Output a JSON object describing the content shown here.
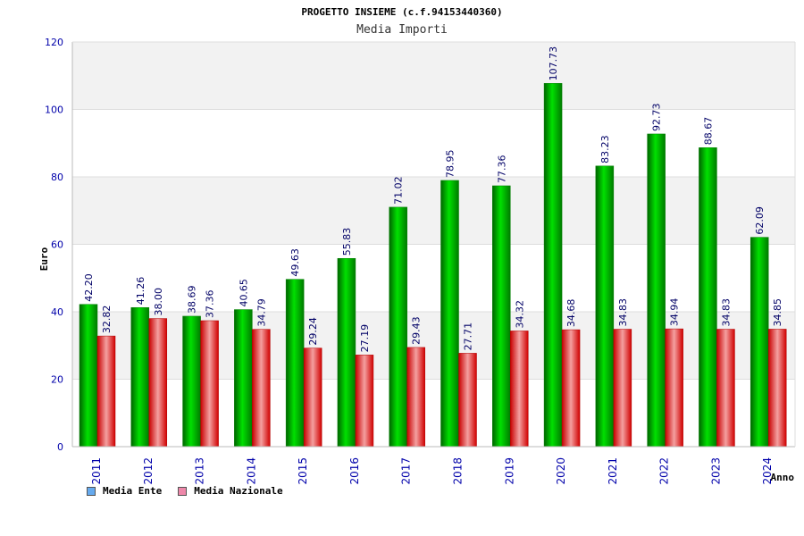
{
  "header": {
    "title": "PROGETTO INSIEME (c.f.94153440360)",
    "subtitle": "Media Importi"
  },
  "legend": {
    "ente_label": "Media Ente",
    "nazionale_label": "Media Nazionale",
    "ente_color": "#66aaee",
    "nazionale_color": "#ee88aa"
  },
  "chart_data": {
    "type": "bar",
    "title": "Media Importi",
    "xlabel": "Anno",
    "ylabel": "Euro",
    "ylim": [
      0,
      120
    ],
    "yticks": [
      0,
      20,
      40,
      60,
      80,
      100,
      120
    ],
    "categories": [
      "2011",
      "2012",
      "2013",
      "2014",
      "2015",
      "2016",
      "2017",
      "2018",
      "2019",
      "2020",
      "2021",
      "2022",
      "2023",
      "2024"
    ],
    "series": [
      {
        "name": "Media Ente",
        "color": "#00c000",
        "values": [
          42.2,
          41.26,
          38.69,
          40.65,
          49.63,
          55.83,
          71.02,
          78.95,
          77.36,
          107.73,
          83.23,
          92.73,
          88.67,
          62.09
        ],
        "labels": [
          "42.20",
          "41.26",
          "38.69",
          "40.65",
          "49.63",
          "55.83",
          "71.02",
          "78.95",
          "77.36",
          "107.73",
          "83.23",
          "92.73",
          "88.67",
          "62.09"
        ]
      },
      {
        "name": "Media Nazionale",
        "color": "#e00000",
        "values": [
          32.82,
          38.0,
          37.36,
          34.79,
          29.24,
          27.19,
          29.43,
          27.71,
          34.32,
          34.68,
          34.83,
          34.94,
          34.83,
          34.85
        ],
        "labels": [
          "32.82",
          "38.00",
          "37.36",
          "34.79",
          "29.24",
          "27.19",
          "29.43",
          "27.71",
          "34.32",
          "34.68",
          "34.83",
          "34.94",
          "34.83",
          "34.85"
        ]
      }
    ],
    "grid": true,
    "legend_position": "bottom-left"
  }
}
